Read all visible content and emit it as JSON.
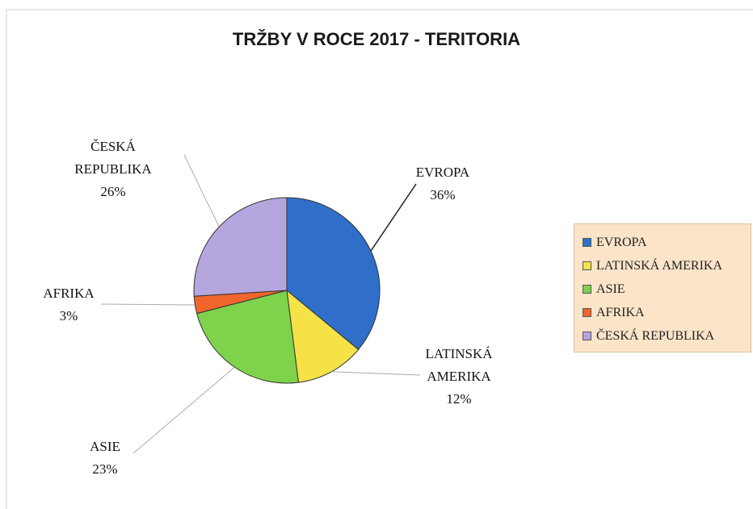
{
  "chart_data": {
    "type": "pie",
    "title": "TRŽBY V ROCE 2017 - TERITORIA",
    "categories": [
      "EVROPA",
      "LATINSKÁ AMERIKA",
      "ASIE",
      "AFRIKA",
      "ČESKÁ REPUBLIKA"
    ],
    "values": [
      36,
      12,
      23,
      3,
      26
    ],
    "value_labels": [
      "36%",
      "12%",
      "23%",
      "3%",
      "26%"
    ],
    "colors": [
      "#2f6fc9",
      "#f4e247",
      "#7fd24c",
      "#f0652b",
      "#b6a6de"
    ],
    "legend": "right"
  }
}
